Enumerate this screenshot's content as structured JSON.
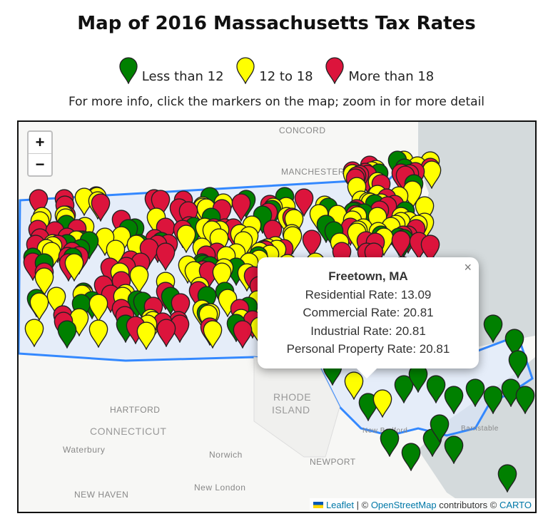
{
  "title": "Map of 2016 Massachusetts Tax Rates",
  "legend": [
    {
      "label": "Less than 12",
      "color": "#008000"
    },
    {
      "label": "12 to 18",
      "color": "#ffff00"
    },
    {
      "label": "More than 18",
      "color": "#dc143c"
    }
  ],
  "subtitle": "For more info, click the markers on the map; zoom in for more detail",
  "zoom": {
    "in": "+",
    "out": "−"
  },
  "map_labels": {
    "concord": "CONCORD",
    "manchester": "MANCHESTER",
    "hartford": "HARTFORD",
    "connecticut": "CONNECTICUT",
    "rhode_island_1": "RHODE",
    "rhode_island_2": "ISLAND",
    "waterbury": "Waterbury",
    "norwich": "Norwich",
    "newport": "NEWPORT",
    "new_haven": "NEW HAVEN",
    "new_london": "New London",
    "new_bedford": "New Bedford",
    "barnstable": "Barnstable"
  },
  "popup": {
    "title": "Freetown, MA",
    "lines": [
      "Residential Rate: 13.09",
      "Commercial Rate: 20.81",
      "Industrial Rate: 20.81",
      "Personal Property Rate: 20.81"
    ],
    "close": "×"
  },
  "attribution": {
    "leaflet": "Leaflet",
    "sep": "| ©",
    "osm": "OpenStreetMap",
    "contrib": "contributors ©",
    "carto": "CARTO"
  },
  "colors": {
    "state_border": "#3388ff",
    "water": "#d4dadc"
  }
}
